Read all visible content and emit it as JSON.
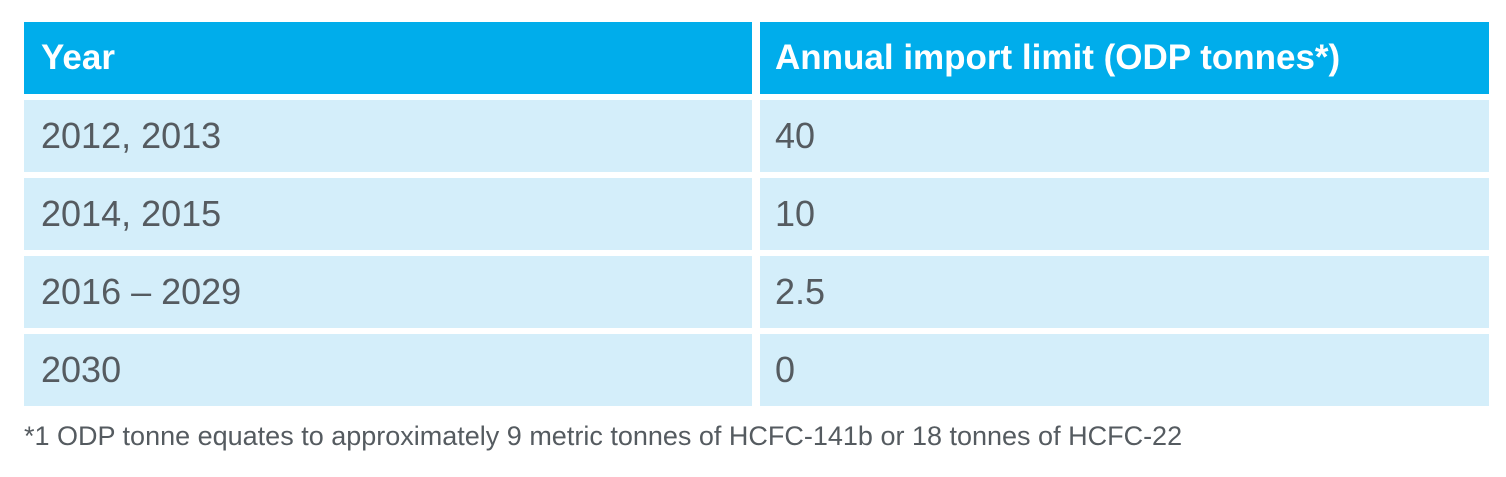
{
  "table": {
    "headers": [
      "Year",
      "Annual import limit (ODP tonnes*)"
    ],
    "rows": [
      [
        "2012, 2013",
        "40"
      ],
      [
        "2014, 2015",
        "10"
      ],
      [
        "2016 – 2029",
        "2.5"
      ],
      [
        "2030",
        "0"
      ]
    ]
  },
  "footnote": "*1 ODP tonne equates to approximately 9 metric tonnes of HCFC-141b or 18 tonnes of HCFC-22",
  "colors": {
    "header_bg": "#00adeb",
    "row_bg": "#d4eefa",
    "text": "#555b60"
  }
}
